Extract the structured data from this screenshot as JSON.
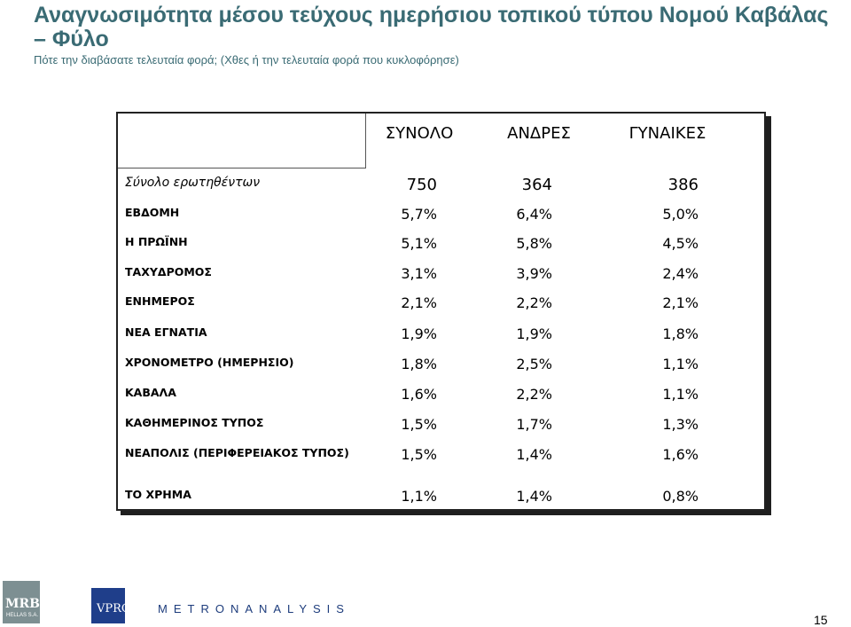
{
  "header": {
    "title": "Αναγνωσιμότητα μέσου τεύχους ημερήσιου τοπικού τύπου Νομού Καβάλας – Φύλο",
    "subtitle": "Πότε την διαβάσατε τελευταία φορά; (Χθες ή την τελευταία φορά που κυκλοφόρησε)"
  },
  "table": {
    "columns": [
      "ΣΥΝΟΛΟ",
      "ΑΝΔΡΕΣ",
      "ΓΥΝΑΙΚΕΣ"
    ],
    "base": {
      "label": "Σύνολο ερωτηθέντων",
      "values": [
        "750",
        "364",
        "386"
      ]
    },
    "rows": [
      {
        "label": "ΕΒΔΟΜΗ",
        "values": [
          "5,7%",
          "6,4%",
          "5,0%"
        ]
      },
      {
        "label": "Η ΠΡΩΪΝΗ",
        "values": [
          "5,1%",
          "5,8%",
          "4,5%"
        ]
      },
      {
        "label": "ΤΑΧΥΔΡΟΜΟΣ",
        "values": [
          "3,1%",
          "3,9%",
          "2,4%"
        ]
      },
      {
        "label": "ΕΝΗΜΕΡΟΣ",
        "values": [
          "2,1%",
          "2,2%",
          "2,1%"
        ]
      },
      {
        "label": "ΝΕΑ ΕΓΝΑΤΙΑ",
        "values": [
          "1,9%",
          "1,9%",
          "1,8%"
        ]
      },
      {
        "label": "ΧΡΟΝΟΜΕΤΡΟ (ΗΜΕΡΗΣΙΟ)",
        "values": [
          "1,8%",
          "2,5%",
          "1,1%"
        ]
      },
      {
        "label": "ΚΑΒΑΛΑ",
        "values": [
          "1,6%",
          "2,2%",
          "1,1%"
        ]
      },
      {
        "label": "ΚΑΘΗΜΕΡΙΝΟΣ ΤΥΠΟΣ",
        "values": [
          "1,5%",
          "1,7%",
          "1,3%"
        ]
      },
      {
        "label": "ΝΕΑΠΟΛΙΣ (ΠΕΡΙΦΕΡΕΙΑΚΟΣ ΤΥΠΟΣ)",
        "values": [
          "1,5%",
          "1,4%",
          "1,6%"
        ]
      },
      {
        "label": "ΤΟ ΧΡΗΜΑ",
        "values": [
          "1,1%",
          "1,4%",
          "0,8%"
        ]
      }
    ]
  },
  "footer": {
    "logo_mrb": "MRB",
    "logo_mrb_sub": "HELLAS S.A.",
    "logo_vprc": "VPRC",
    "logo_metron": "METRONANALYSIS",
    "page_number": "15"
  }
}
